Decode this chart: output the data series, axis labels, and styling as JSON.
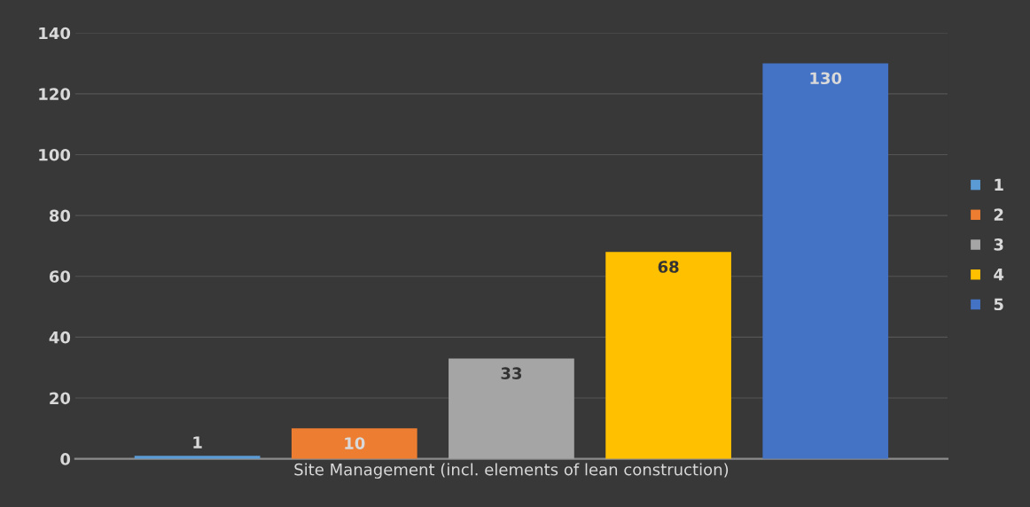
{
  "chart_data": {
    "type": "bar",
    "categories": [
      "Site Management (incl. elements of lean construction)"
    ],
    "series": [
      {
        "name": "1",
        "color": "#5b9bd5",
        "values": [
          1
        ]
      },
      {
        "name": "2",
        "color": "#ed7d31",
        "values": [
          10
        ]
      },
      {
        "name": "3",
        "color": "#a5a5a5",
        "values": [
          33
        ]
      },
      {
        "name": "4",
        "color": "#ffc000",
        "values": [
          68
        ]
      },
      {
        "name": "5",
        "color": "#4472c4",
        "values": [
          130
        ]
      }
    ],
    "ylim": [
      0,
      140
    ],
    "yticks": [
      0,
      20,
      40,
      60,
      80,
      100,
      120,
      140
    ],
    "grid": "y",
    "legend": "right",
    "data_labels": true
  }
}
